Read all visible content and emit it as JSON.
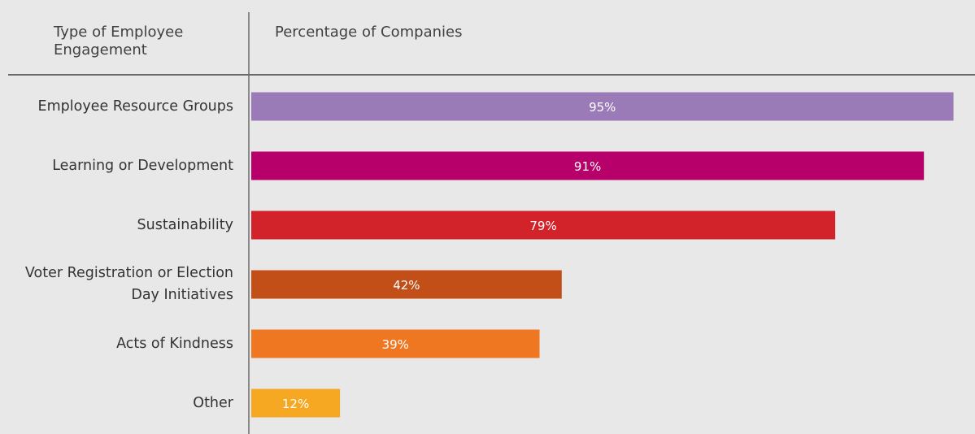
{
  "chart_data": {
    "type": "bar",
    "orientation": "horizontal",
    "column_headers": {
      "category": "Type of Employee Engagement",
      "value": "Percentage of Companies"
    },
    "categories": [
      "Employee Resource Groups",
      "Learning or Development",
      "Sustainability",
      "Voter Registration or Election Day Initiatives",
      "Acts of Kindness",
      "Other"
    ],
    "category_lines": [
      [
        "Employee Resource Groups"
      ],
      [
        "Learning or Development"
      ],
      [
        "Sustainability"
      ],
      [
        "Voter Registration or Election",
        "Day Initiatives"
      ],
      [
        "Acts of Kindness"
      ],
      [
        "Other"
      ]
    ],
    "values": [
      95,
      91,
      79,
      42,
      39,
      12
    ],
    "value_labels": [
      "95%",
      "91%",
      "79%",
      "42%",
      "39%",
      "12%"
    ],
    "colors": [
      "#9a7bb8",
      "#b8006a",
      "#d2232a",
      "#c24f17",
      "#ef7722",
      "#f6a823"
    ],
    "xlim": [
      0,
      100
    ],
    "grid": false,
    "legend": "none"
  }
}
